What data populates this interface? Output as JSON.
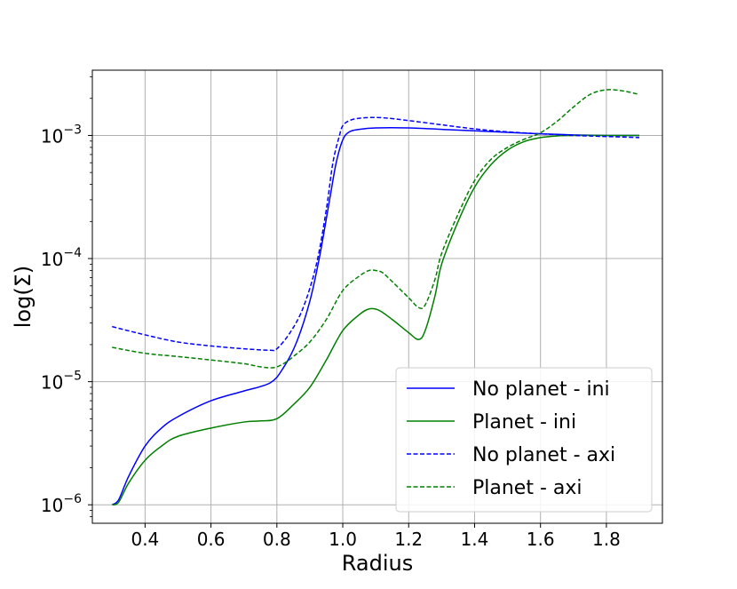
{
  "chart_data": {
    "type": "line",
    "title": "",
    "xlabel": "Radius",
    "ylabel": "log(Σ)",
    "xlim": [
      0.24,
      1.97
    ],
    "ylim_log10": [
      -6.15,
      -2.47
    ],
    "y_scale": "log",
    "x_ticks": [
      "0.4",
      "0.6",
      "0.8",
      "1.0",
      "1.2",
      "1.4",
      "1.6",
      "1.8"
    ],
    "x_tick_values": [
      0.4,
      0.6,
      0.8,
      1.0,
      1.2,
      1.4,
      1.6,
      1.8
    ],
    "y_ticks": [
      {
        "base": "10",
        "exp": "−6",
        "log10": -6
      },
      {
        "base": "10",
        "exp": "−5",
        "log10": -5
      },
      {
        "base": "10",
        "exp": "−4",
        "log10": -4
      },
      {
        "base": "10",
        "exp": "−3",
        "log10": -3
      }
    ],
    "grid": true,
    "legend_position": "lower-right",
    "series": [
      {
        "name": "No planet - ini",
        "color": "#0000ff",
        "style": "solid",
        "x": [
          0.3,
          0.32,
          0.35,
          0.4,
          0.45,
          0.5,
          0.6,
          0.7,
          0.78,
          0.82,
          0.86,
          0.9,
          0.93,
          0.96,
          0.98,
          1.0,
          1.02,
          1.05,
          1.1,
          1.2,
          1.3,
          1.4,
          1.5,
          1.6,
          1.7,
          1.8,
          1.9
        ],
        "y": [
          1e-06,
          1.1e-06,
          1.7e-06,
          3e-06,
          4.2e-06,
          5.2e-06,
          7e-06,
          8.4e-06,
          9.8e-06,
          1.3e-05,
          2.1e-05,
          4.5e-05,
          0.000105,
          0.0003,
          0.0006,
          0.00092,
          0.00107,
          0.00112,
          0.00115,
          0.00115,
          0.00112,
          0.00109,
          0.00106,
          0.00103,
          0.00101,
          0.001,
          0.001
        ]
      },
      {
        "name": "Planet - ini",
        "color": "#008000",
        "style": "solid",
        "x": [
          0.3,
          0.32,
          0.35,
          0.4,
          0.45,
          0.5,
          0.6,
          0.7,
          0.75,
          0.8,
          0.85,
          0.9,
          0.95,
          1.0,
          1.05,
          1.08,
          1.11,
          1.15,
          1.2,
          1.23,
          1.25,
          1.28,
          1.3,
          1.35,
          1.4,
          1.45,
          1.5,
          1.55,
          1.6,
          1.65,
          1.7,
          1.8,
          1.9
        ],
        "y": [
          1e-06,
          1.05e-06,
          1.5e-06,
          2.3e-06,
          3e-06,
          3.6e-06,
          4.2e-06,
          4.7e-06,
          4.8e-06,
          5e-06,
          6.5e-06,
          9e-06,
          1.5e-05,
          2.6e-05,
          3.5e-05,
          3.9e-05,
          3.8e-05,
          3.2e-05,
          2.5e-05,
          2.2e-05,
          2.6e-05,
          5e-05,
          9e-05,
          0.0002,
          0.00038,
          0.00058,
          0.00076,
          0.00089,
          0.00096,
          0.00099,
          0.001,
          0.001,
          0.001
        ]
      },
      {
        "name": "No planet - axi",
        "color": "#0000ff",
        "style": "dashed",
        "x": [
          0.3,
          0.4,
          0.5,
          0.6,
          0.7,
          0.78,
          0.8,
          0.84,
          0.88,
          0.92,
          0.95,
          0.97,
          0.99,
          1.0,
          1.02,
          1.05,
          1.1,
          1.15,
          1.2,
          1.3,
          1.4,
          1.5,
          1.6,
          1.7,
          1.8,
          1.9
        ],
        "y": [
          2.8e-05,
          2.4e-05,
          2.1e-05,
          1.95e-05,
          1.85e-05,
          1.8e-05,
          1.85e-05,
          2.5e-05,
          4e-05,
          9e-05,
          0.00025,
          0.0006,
          0.001,
          0.0012,
          0.00132,
          0.00138,
          0.0014,
          0.00137,
          0.00132,
          0.00122,
          0.00113,
          0.00107,
          0.00103,
          0.001,
          0.00098,
          0.00096
        ]
      },
      {
        "name": "Planet - axi",
        "color": "#008000",
        "style": "dashed",
        "x": [
          0.3,
          0.4,
          0.5,
          0.6,
          0.7,
          0.75,
          0.79,
          0.82,
          0.85,
          0.9,
          0.95,
          1.0,
          1.05,
          1.08,
          1.1,
          1.12,
          1.15,
          1.2,
          1.23,
          1.25,
          1.28,
          1.3,
          1.35,
          1.4,
          1.45,
          1.5,
          1.55,
          1.6,
          1.65,
          1.7,
          1.75,
          1.8,
          1.85,
          1.9
        ],
        "y": [
          1.9e-05,
          1.7e-05,
          1.6e-05,
          1.5e-05,
          1.4e-05,
          1.32e-05,
          1.3e-05,
          1.4e-05,
          1.6e-05,
          2.1e-05,
          3.2e-05,
          5.5e-05,
          7.2e-05,
          8e-05,
          8e-05,
          7.7e-05,
          6.5e-05,
          4.8e-05,
          4e-05,
          4.2e-05,
          6.8e-05,
          0.00011,
          0.00023,
          0.00043,
          0.00064,
          0.0008,
          0.00093,
          0.00105,
          0.0013,
          0.0017,
          0.00215,
          0.00235,
          0.0023,
          0.00215
        ]
      }
    ]
  }
}
